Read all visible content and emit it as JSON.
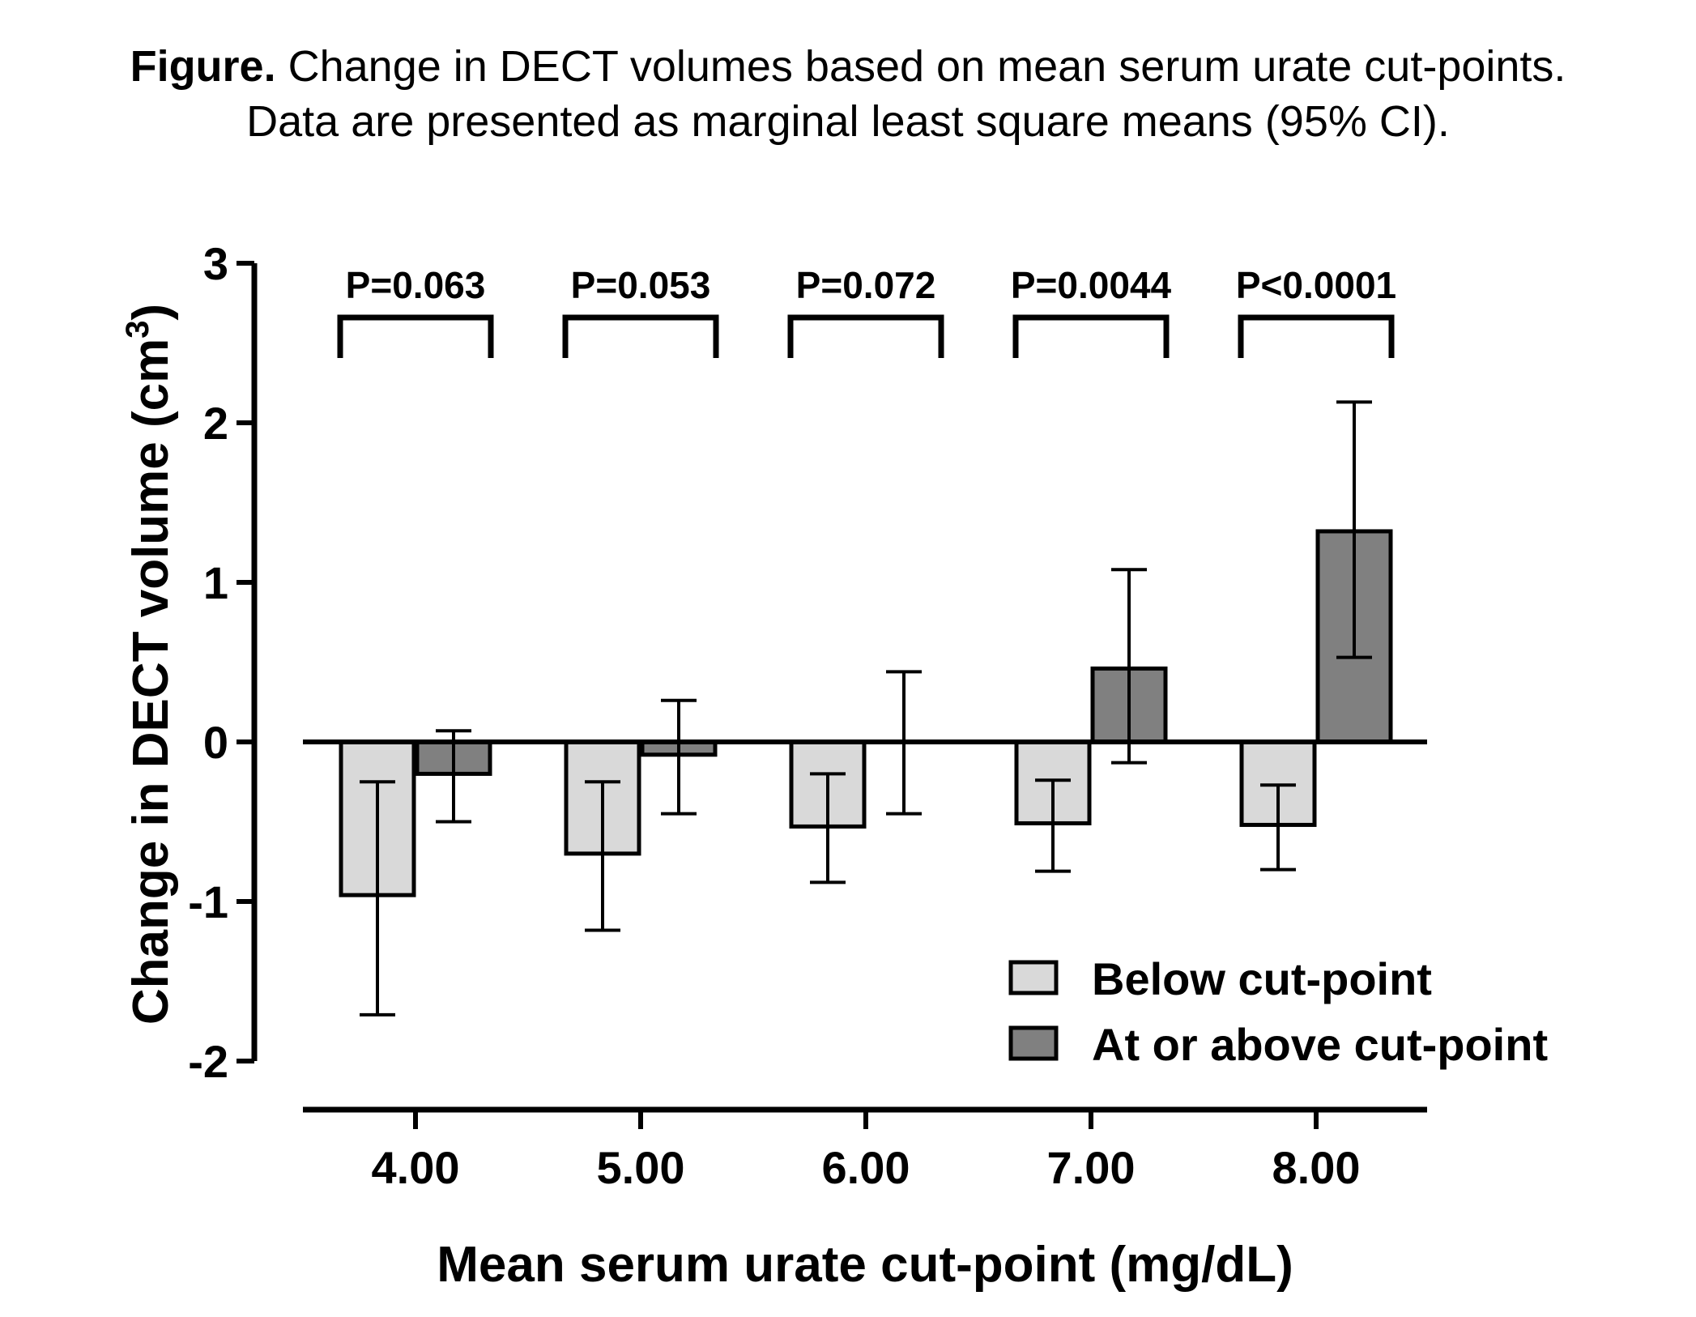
{
  "caption": {
    "label": "Figure.",
    "line1": "Change in DECT volumes based on mean serum urate cut-points.",
    "line2": "Data are presented as marginal least square means (95% CI)."
  },
  "chart_data": {
    "type": "bar",
    "xlabel": "Mean serum urate cut-point (mg/dL)",
    "ylabel_main": "Change in DECT volume (cm",
    "ylabel_sup": "3",
    "ylabel_close": ")",
    "ylim": [
      -2,
      3
    ],
    "yticks": [
      -2,
      -1,
      0,
      1,
      2,
      3
    ],
    "ytick_labels": [
      "-2",
      "-1",
      "0",
      "1",
      "2",
      "3"
    ],
    "categories": [
      "4.00",
      "5.00",
      "6.00",
      "7.00",
      "8.00"
    ],
    "series": [
      {
        "name": "Below cut-point",
        "color": "#d9d9d9",
        "values": [
          -0.96,
          -0.7,
          -0.53,
          -0.51,
          -0.52
        ],
        "ci_low": [
          -1.71,
          -1.18,
          -0.88,
          -0.81,
          -0.8
        ],
        "ci_high": [
          -0.25,
          -0.25,
          -0.2,
          -0.24,
          -0.27
        ]
      },
      {
        "name": "At or above cut-point",
        "color": "#808080",
        "values": [
          -0.2,
          -0.08,
          0.0,
          0.46,
          1.32
        ],
        "ci_low": [
          -0.5,
          -0.45,
          -0.45,
          -0.13,
          0.53
        ],
        "ci_high": [
          0.07,
          0.26,
          0.44,
          1.08,
          2.13
        ]
      }
    ],
    "p_values": [
      "P=0.063",
      "P=0.053",
      "P=0.072",
      "P=0.0044",
      "P<0.0001"
    ],
    "legend_position": "bottom-right",
    "grid": false
  }
}
